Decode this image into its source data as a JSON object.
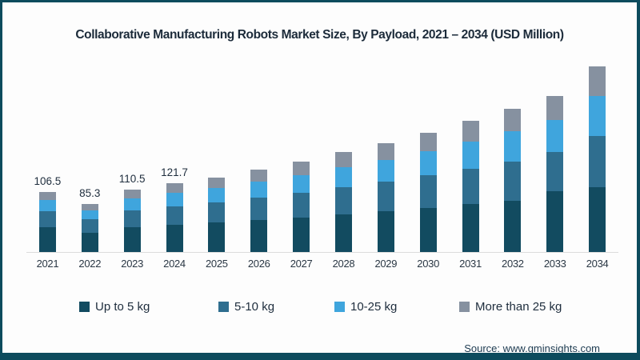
{
  "title": "Collaborative Manufacturing Robots Market Size, By Payload, 2021 – 2034 (USD Million)",
  "source": "Source: www.gminsights.com",
  "colors": {
    "frame": "#0d4b5d",
    "background": "#fdfdfd",
    "title_text": "#1c2b3a",
    "axis_text": "#2a3744",
    "baseline": "#dcdcdc"
  },
  "chart_data": {
    "type": "bar",
    "stacked": true,
    "unit": "USD Million",
    "title": "Collaborative Manufacturing Robots Market Size, By Payload, 2021 – 2034 (USD Million)",
    "xlabel": "",
    "ylabel": "",
    "ylim": [
      0,
      340
    ],
    "grid": false,
    "legend_position": "bottom",
    "categories": [
      "2021",
      "2022",
      "2023",
      "2024",
      "2025",
      "2026",
      "2027",
      "2028",
      "2029",
      "2030",
      "2031",
      "2032",
      "2033",
      "2034"
    ],
    "series": [
      {
        "name": "Up to 5 kg",
        "color": "#124b60",
        "values": [
          44.0,
          34.8,
          44.5,
          48.4,
          52.2,
          57.0,
          61.6,
          67.1,
          72.2,
          78.2,
          84.6,
          91.6,
          108.6,
          115.7
        ]
      },
      {
        "name": "5-10 kg",
        "color": "#2f6e8f",
        "values": [
          28.4,
          22.9,
          29.6,
          32.7,
          35.6,
          39.6,
          43.5,
          48.0,
          52.5,
          57.7,
          63.5,
          69.5,
          69.6,
          90.9
        ]
      },
      {
        "name": "10-25 kg",
        "color": "#3fa5dd",
        "values": [
          19.9,
          16.1,
          21.1,
          23.5,
          25.8,
          28.9,
          31.9,
          35.4,
          39.0,
          43.2,
          47.9,
          52.9,
          56.8,
          70.0
        ]
      },
      {
        "name": "More than 25 kg",
        "color": "#8691a0",
        "values": [
          14.2,
          11.5,
          15.3,
          17.1,
          18.9,
          21.0,
          23.5,
          26.5,
          29.3,
          32.9,
          36.5,
          40.5,
          42.5,
          53.4
        ]
      }
    ],
    "totals": [
      106.5,
      85.3,
      110.5,
      121.7,
      132.5,
      146.5,
      160.5,
      177.0,
      193.0,
      212.0,
      232.5,
      254.5,
      277.5,
      330.0
    ],
    "labeled_totals": {
      "2021": "106.5",
      "2022": "85.3",
      "2023": "110.5",
      "2024": "121.7"
    }
  }
}
